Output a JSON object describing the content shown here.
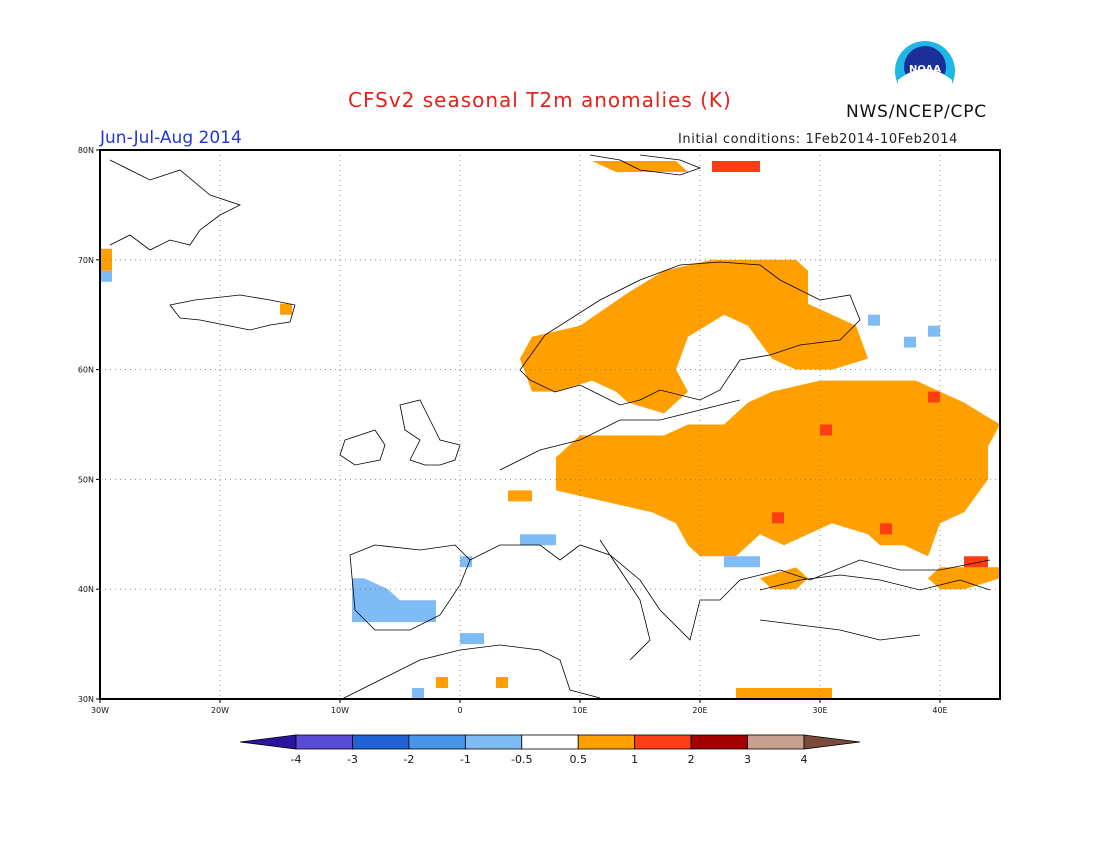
{
  "title": "CFSv2 seasonal T2m anomalies (K)",
  "season": "Jun-Jul-Aug 2014",
  "initial_conditions": "Initial conditions: 1Feb2014-10Feb2014",
  "agency": "NWS/NCEP/CPC",
  "logo_text": "NOAA",
  "map": {
    "lon_range": [
      -30,
      45
    ],
    "lat_range": [
      30,
      80
    ],
    "lon_ticks": [
      {
        "value": -30,
        "label": "30W"
      },
      {
        "value": -20,
        "label": "20W"
      },
      {
        "value": -10,
        "label": "10W"
      },
      {
        "value": 0,
        "label": "0"
      },
      {
        "value": 10,
        "label": "10E"
      },
      {
        "value": 20,
        "label": "20E"
      },
      {
        "value": 30,
        "label": "30E"
      },
      {
        "value": 40,
        "label": "40E"
      }
    ],
    "lat_ticks": [
      {
        "value": 30,
        "label": "30N"
      },
      {
        "value": 40,
        "label": "40N"
      },
      {
        "value": 50,
        "label": "50N"
      },
      {
        "value": 60,
        "label": "60N"
      },
      {
        "value": 70,
        "label": "70N"
      },
      {
        "value": 80,
        "label": "80N"
      }
    ],
    "grid": "dotted"
  },
  "colorbar": {
    "labels": [
      "-4",
      "-3",
      "-2",
      "-1",
      "-0.5",
      "0.5",
      "1",
      "2",
      "3",
      "4"
    ],
    "colors": [
      "#2c14a0",
      "#5a4ad6",
      "#1f63d4",
      "#4595ea",
      "#7fbbf4",
      "#ffffff",
      "#ffa000",
      "#ff3d14",
      "#a30000",
      "#c7a090",
      "#7a4a3a"
    ]
  },
  "anomaly_regions": [
    {
      "name": "Scandinavia",
      "class": "0.5 to 1",
      "color": "#ffa000",
      "pts": [
        [
          5,
          61
        ],
        [
          6,
          63
        ],
        [
          10,
          64
        ],
        [
          14,
          67
        ],
        [
          17,
          69
        ],
        [
          21,
          70
        ],
        [
          28,
          70
        ],
        [
          29,
          69
        ],
        [
          29,
          66
        ],
        [
          33,
          64
        ],
        [
          34,
          61
        ],
        [
          31,
          60
        ],
        [
          28,
          60
        ],
        [
          26,
          61
        ],
        [
          24,
          64
        ],
        [
          22,
          65
        ],
        [
          19,
          63
        ],
        [
          18,
          60
        ],
        [
          19,
          58
        ],
        [
          17,
          56
        ],
        [
          14,
          57
        ],
        [
          13,
          58
        ],
        [
          11,
          59
        ],
        [
          8,
          58
        ],
        [
          6,
          58
        ]
      ]
    },
    {
      "name": "Eastern Europe",
      "class": "0.5 to 1",
      "color": "#ffa000",
      "pts": [
        [
          8,
          52
        ],
        [
          8,
          49
        ],
        [
          12,
          48
        ],
        [
          16,
          47
        ],
        [
          18,
          46
        ],
        [
          19,
          44
        ],
        [
          20,
          43
        ],
        [
          23,
          43
        ],
        [
          25,
          45
        ],
        [
          27,
          44
        ],
        [
          31,
          46
        ],
        [
          34,
          45
        ],
        [
          35,
          44
        ],
        [
          37,
          44
        ],
        [
          39,
          43
        ],
        [
          40,
          46
        ],
        [
          42,
          47
        ],
        [
          44,
          50
        ],
        [
          44,
          53
        ],
        [
          45,
          55
        ],
        [
          42,
          57
        ],
        [
          40,
          58
        ],
        [
          38,
          59
        ],
        [
          34,
          59
        ],
        [
          30,
          59
        ],
        [
          26,
          58
        ],
        [
          24,
          57
        ],
        [
          22,
          55
        ],
        [
          19,
          55
        ],
        [
          17,
          54
        ],
        [
          12,
          54
        ],
        [
          10,
          54
        ]
      ]
    },
    {
      "name": "Caucasus",
      "class": "0.5 to 1",
      "color": "#ffa000",
      "pts": [
        [
          39,
          41
        ],
        [
          40,
          42
        ],
        [
          43,
          42
        ],
        [
          45,
          42
        ],
        [
          45,
          41
        ],
        [
          42,
          40
        ],
        [
          40,
          40
        ]
      ]
    },
    {
      "name": "Turkey west",
      "class": "0.5 to 1",
      "color": "#ffa000",
      "pts": [
        [
          25,
          41
        ],
        [
          28,
          42
        ],
        [
          29,
          41
        ],
        [
          28,
          40
        ],
        [
          26,
          40
        ]
      ]
    },
    {
      "name": "Crete",
      "class": "0.5 to 1",
      "color": "#ffa000",
      "pts": [
        [
          23,
          31
        ],
        [
          25,
          31
        ],
        [
          31,
          31
        ],
        [
          31,
          30
        ],
        [
          23,
          30
        ]
      ]
    },
    {
      "name": "Svalbard",
      "class": "0.5 to 1",
      "color": "#ffa000",
      "pts": [
        [
          11,
          79
        ],
        [
          14,
          79
        ],
        [
          18,
          79
        ],
        [
          19,
          78
        ],
        [
          15,
          78
        ],
        [
          13,
          78
        ]
      ]
    },
    {
      "name": "Greenland tip",
      "class": "0.5 to 1",
      "color": "#ffa000",
      "pts": [
        [
          -30,
          71
        ],
        [
          -29,
          71
        ],
        [
          -29,
          69
        ],
        [
          -30,
          69
        ]
      ]
    },
    {
      "name": "Iceland east",
      "class": "0.5 to 1",
      "color": "#ffa000",
      "pts": [
        [
          -15,
          65
        ],
        [
          -14,
          65
        ],
        [
          -14,
          66
        ],
        [
          -15,
          66
        ]
      ]
    },
    {
      "name": "France",
      "class": "0.5 to 1",
      "color": "#ffa000",
      "pts": [
        [
          4,
          48
        ],
        [
          6,
          48
        ],
        [
          6,
          49
        ],
        [
          4,
          49
        ]
      ]
    },
    {
      "name": "Balearic",
      "class": "0.5 to 1",
      "color": "#ffa000",
      "pts": [
        [
          -2,
          31
        ],
        [
          -1,
          31
        ],
        [
          -1,
          32
        ],
        [
          -2,
          32
        ]
      ]
    },
    {
      "name": "N Africa",
      "class": "0.5 to 1",
      "color": "#ffa000",
      "pts": [
        [
          3,
          31
        ],
        [
          4,
          31
        ],
        [
          4,
          32
        ],
        [
          3,
          32
        ]
      ]
    },
    {
      "name": "Nova Zemlya",
      "class": "1 to 2",
      "color": "#ff3d14",
      "pts": [
        [
          21,
          78
        ],
        [
          25,
          78
        ],
        [
          25,
          79
        ],
        [
          21,
          79
        ]
      ]
    },
    {
      "name": "Russia west",
      "class": "1 to 2",
      "color": "#ff3d14",
      "pts": [
        [
          39,
          57
        ],
        [
          40,
          57
        ],
        [
          40,
          58
        ],
        [
          39,
          58
        ]
      ]
    },
    {
      "name": "Ukraine",
      "class": "1 to 2",
      "color": "#ff3d14",
      "pts": [
        [
          30,
          54
        ],
        [
          31,
          54
        ],
        [
          31,
          55
        ],
        [
          30,
          55
        ]
      ]
    },
    {
      "name": "Moldova",
      "class": "1 to 2",
      "color": "#ff3d14",
      "pts": [
        [
          26,
          46
        ],
        [
          27,
          46
        ],
        [
          27,
          47
        ],
        [
          26,
          47
        ]
      ]
    },
    {
      "name": "Crimea",
      "class": "1 to 2",
      "color": "#ff3d14",
      "pts": [
        [
          35,
          45
        ],
        [
          36,
          45
        ],
        [
          36,
          46
        ],
        [
          35,
          46
        ]
      ]
    },
    {
      "name": "Georgia",
      "class": "1 to 2",
      "color": "#ff3d14",
      "pts": [
        [
          42,
          42
        ],
        [
          44,
          42
        ],
        [
          44,
          43
        ],
        [
          42,
          43
        ]
      ]
    },
    {
      "name": "Iberia",
      "class": "-1 to -0.5",
      "color": "#7fbbf4",
      "pts": [
        [
          -9,
          37
        ],
        [
          -8,
          37
        ],
        [
          -7,
          37
        ],
        [
          -2,
          37
        ],
        [
          -2,
          39
        ],
        [
          -5,
          39
        ],
        [
          -6,
          40
        ],
        [
          -8,
          41
        ],
        [
          -9,
          41
        ]
      ]
    },
    {
      "name": "N Africa cold",
      "class": "-1 to -0.5",
      "color": "#7fbbf4",
      "pts": [
        [
          0,
          35
        ],
        [
          2,
          35
        ],
        [
          2,
          36
        ],
        [
          0,
          36
        ]
      ]
    },
    {
      "name": "Gibraltar",
      "class": "-1 to -0.5",
      "color": "#7fbbf4",
      "pts": [
        [
          -4,
          30
        ],
        [
          -3,
          30
        ],
        [
          -3,
          31
        ],
        [
          -4,
          31
        ]
      ]
    },
    {
      "name": "Spain NE",
      "class": "-1 to -0.5",
      "color": "#7fbbf4",
      "pts": [
        [
          0,
          42
        ],
        [
          1,
          42
        ],
        [
          1,
          43
        ],
        [
          0,
          43
        ]
      ]
    },
    {
      "name": "Alps",
      "class": "-1 to -0.5",
      "color": "#7fbbf4",
      "pts": [
        [
          5,
          44
        ],
        [
          8,
          44
        ],
        [
          8,
          45
        ],
        [
          5,
          45
        ]
      ]
    },
    {
      "name": "Balkans cold",
      "class": "-1 to -0.5",
      "color": "#7fbbf4",
      "pts": [
        [
          22,
          42
        ],
        [
          25,
          42
        ],
        [
          25,
          43
        ],
        [
          22,
          43
        ]
      ]
    },
    {
      "name": "Greenland cold",
      "class": "-1 to -0.5",
      "color": "#7fbbf4",
      "pts": [
        [
          -30,
          68
        ],
        [
          -29,
          68
        ],
        [
          -29,
          69
        ],
        [
          -30,
          69
        ]
      ]
    },
    {
      "name": "Russia NW cold",
      "class": "-1 to -0.5",
      "color": "#7fbbf4",
      "pts": [
        [
          37,
          62
        ],
        [
          38,
          62
        ],
        [
          38,
          63
        ],
        [
          37,
          63
        ]
      ]
    },
    {
      "name": "Russia NE cold",
      "class": "-1 to -0.5",
      "color": "#7fbbf4",
      "pts": [
        [
          39,
          63
        ],
        [
          40,
          63
        ],
        [
          40,
          64
        ],
        [
          39,
          64
        ]
      ]
    },
    {
      "name": "Kola cold",
      "class": "-1 to -0.5",
      "color": "#7fbbf4",
      "pts": [
        [
          34,
          64
        ],
        [
          35,
          64
        ],
        [
          35,
          65
        ],
        [
          34,
          65
        ]
      ]
    }
  ]
}
